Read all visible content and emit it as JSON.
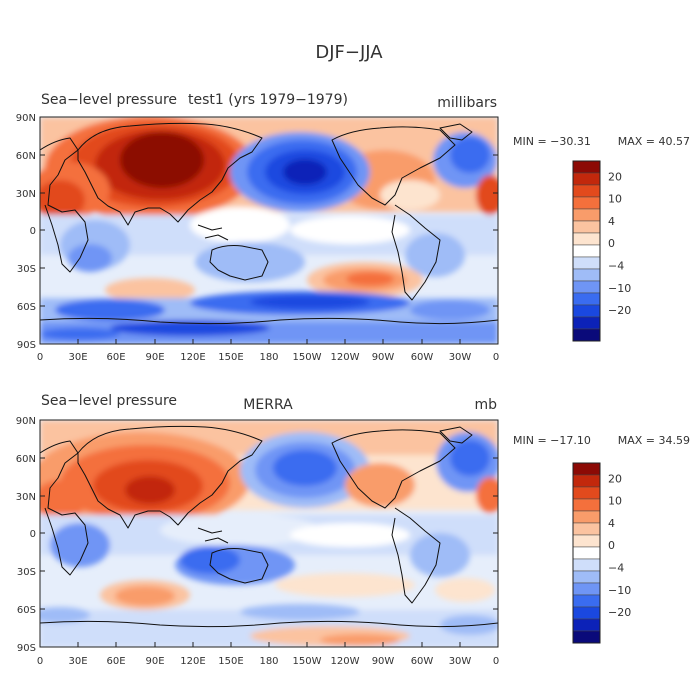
{
  "figure": {
    "title": "DJF−JJA"
  },
  "legend": {
    "colors": [
      "#0a0a7a",
      "#0c22b8",
      "#1a48e0",
      "#3a6cf0",
      "#6f95f5",
      "#9fbcf7",
      "#cfdefa",
      "#ffffff",
      "#fde4cf",
      "#fbc3a0",
      "#f99c6a",
      "#f4703c",
      "#e24a1d",
      "#c2280c",
      "#8c0a05"
    ],
    "tick_labels": [
      "20",
      "10",
      "4",
      "0",
      "−4",
      "−10",
      "−20"
    ]
  },
  "panels": [
    {
      "left_title": "Sea−level pressure",
      "center_title": "test1 (yrs 1979−1979)",
      "units": "millibars",
      "min_label": "MIN = −30.31",
      "max_label": "MAX =  40.57",
      "lat_labels": [
        "90N",
        "60N",
        "30N",
        "0",
        "30S",
        "60S",
        "90S"
      ],
      "lon_labels": [
        "0",
        "30E",
        "60E",
        "90E",
        "120E",
        "150E",
        "180",
        "150W",
        "120W",
        "90W",
        "60W",
        "30W",
        "0"
      ]
    },
    {
      "left_title": "Sea−level pressure",
      "center_title": "MERRA",
      "units": "mb",
      "min_label": "MIN = −17.10",
      "max_label": "MAX =  34.59",
      "lat_labels": [
        "90N",
        "60N",
        "30N",
        "0",
        "30S",
        "60S",
        "90S"
      ],
      "lon_labels": [
        "0",
        "30E",
        "60E",
        "90E",
        "120E",
        "150E",
        "180",
        "150W",
        "120W",
        "90W",
        "60W",
        "30W",
        "0"
      ]
    }
  ]
}
